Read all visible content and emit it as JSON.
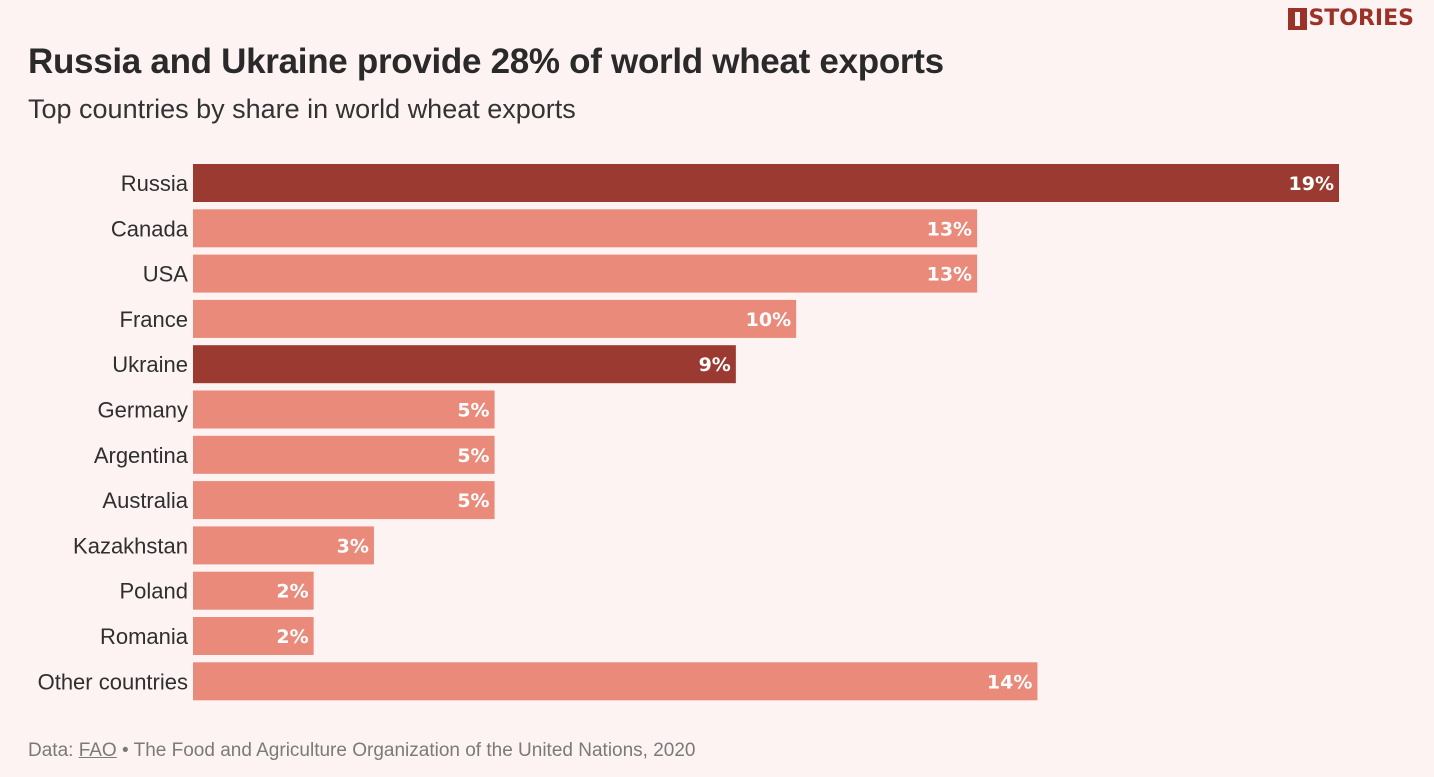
{
  "brand": {
    "logo_text": "STORIES",
    "logo_color": "#9b3228"
  },
  "header": {
    "title": "Russia and Ukraine provide 28% of world wheat exports",
    "subtitle": "Top countries by share in world wheat exports"
  },
  "footer": {
    "prefix": "Data:",
    "source_link": "FAO",
    "separator": "•",
    "source_text": "The Food and Agriculture Organization of the United Nations, 2020"
  },
  "colors": {
    "highlight": "#9b3a30",
    "default": "#e98a7b",
    "background": "#fdf3f3"
  },
  "chart_data": {
    "type": "bar",
    "orientation": "horizontal",
    "categories": [
      "Russia",
      "Canada",
      "USA",
      "France",
      "Ukraine",
      "Germany",
      "Argentina",
      "Australia",
      "Kazakhstan",
      "Poland",
      "Romania",
      "Other countries"
    ],
    "values": [
      19,
      13,
      13,
      10,
      9,
      5,
      5,
      5,
      3,
      2,
      2,
      14
    ],
    "value_labels": [
      "19%",
      "13%",
      "13%",
      "10%",
      "9%",
      "5%",
      "5%",
      "5%",
      "3%",
      "2%",
      "2%",
      "14%"
    ],
    "highlighted": [
      "Russia",
      "Ukraine"
    ],
    "unit": "%",
    "title": "Russia and Ukraine provide 28% of world wheat exports",
    "subtitle": "Top countries by share in world wheat exports",
    "xlabel": "",
    "ylabel": "",
    "xlim": [
      0,
      19
    ],
    "grid": false,
    "legend": "none"
  }
}
